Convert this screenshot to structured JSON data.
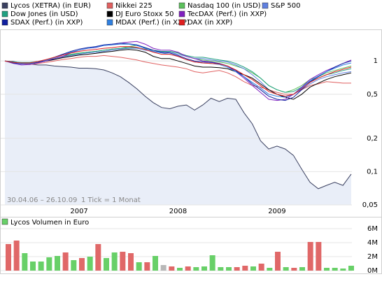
{
  "chart_data": [
    {
      "type": "line",
      "log": true,
      "grid": true,
      "annotations": [
        "30.04.06 – 26.10.09",
        "1 Tick = 1 Monat"
      ],
      "categories": [
        null,
        null,
        null,
        null,
        null,
        null,
        null,
        null,
        null,
        "2007",
        null,
        null,
        null,
        null,
        null,
        null,
        null,
        null,
        null,
        null,
        null,
        "2008",
        null,
        null,
        null,
        null,
        null,
        null,
        null,
        null,
        null,
        null,
        null,
        "2009",
        null,
        null,
        null,
        null,
        null,
        null,
        null,
        null,
        null
      ],
      "ylim": [
        0.05,
        1.93
      ],
      "yticks": [
        {
          "value": 0.05,
          "label": "0,05"
        },
        {
          "value": 0.1,
          "label": "0,1"
        },
        {
          "value": 0.2,
          "label": "0,2"
        },
        {
          "value": 0.5,
          "label": "0,5"
        },
        1
      ],
      "series": [
        {
          "name": "Lycos (XETRA) (in EUR)",
          "color": "#3a4060",
          "fill": "#e9eef8",
          "values": [
            1,
            0.99,
            0.96,
            0.94,
            0.92,
            0.92,
            0.9,
            0.89,
            0.88,
            0.86,
            0.86,
            0.85,
            0.83,
            0.78,
            0.72,
            0.64,
            0.56,
            0.48,
            0.42,
            0.38,
            0.37,
            0.39,
            0.4,
            0.36,
            0.4,
            0.46,
            0.43,
            0.46,
            0.45,
            0.34,
            0.27,
            0.19,
            0.16,
            0.17,
            0.16,
            0.14,
            0.105,
            0.08,
            0.07,
            0.075,
            0.08,
            0.075,
            0.095
          ]
        },
        {
          "name": "Nikkei 225",
          "color": "#e06060",
          "values": [
            1,
            0.97,
            0.95,
            0.93,
            0.95,
            0.97,
            1.0,
            1.03,
            1.05,
            1.08,
            1.1,
            1.1,
            1.12,
            1.1,
            1.08,
            1.05,
            1.02,
            0.98,
            0.95,
            0.92,
            0.9,
            0.88,
            0.85,
            0.8,
            0.78,
            0.8,
            0.82,
            0.78,
            0.72,
            0.65,
            0.6,
            0.58,
            0.55,
            0.52,
            0.5,
            0.5,
            0.55,
            0.6,
            0.62,
            0.65,
            0.64,
            0.63,
            0.63
          ]
        },
        {
          "name": "Nasdaq 100 (in USD)",
          "color": "#5cc05c",
          "values": [
            1,
            0.98,
            0.96,
            0.95,
            0.97,
            1.0,
            1.05,
            1.1,
            1.15,
            1.18,
            1.2,
            1.22,
            1.25,
            1.28,
            1.3,
            1.35,
            1.38,
            1.32,
            1.25,
            1.2,
            1.22,
            1.18,
            1.1,
            1.05,
            1.02,
            1.0,
            0.98,
            0.95,
            0.9,
            0.85,
            0.78,
            0.7,
            0.6,
            0.55,
            0.52,
            0.55,
            0.6,
            0.68,
            0.72,
            0.78,
            0.82,
            0.86,
            0.9
          ]
        },
        {
          "name": "S&P 500",
          "color": "#6080e0",
          "values": [
            1,
            0.98,
            0.96,
            0.96,
            0.98,
            1.0,
            1.03,
            1.08,
            1.12,
            1.15,
            1.18,
            1.2,
            1.22,
            1.25,
            1.28,
            1.3,
            1.3,
            1.25,
            1.22,
            1.2,
            1.2,
            1.15,
            1.1,
            1.05,
            1.05,
            1.02,
            1.0,
            0.98,
            0.92,
            0.85,
            0.75,
            0.65,
            0.55,
            0.5,
            0.48,
            0.5,
            0.55,
            0.62,
            0.68,
            0.72,
            0.75,
            0.78,
            0.8
          ]
        },
        {
          "name": "Dow Jones (in USD)",
          "color": "#20a080",
          "values": [
            1,
            0.98,
            0.97,
            0.97,
            0.99,
            1.02,
            1.05,
            1.1,
            1.14,
            1.17,
            1.2,
            1.22,
            1.25,
            1.28,
            1.3,
            1.32,
            1.32,
            1.28,
            1.25,
            1.22,
            1.22,
            1.18,
            1.12,
            1.08,
            1.08,
            1.05,
            1.02,
            1.0,
            0.95,
            0.88,
            0.8,
            0.7,
            0.6,
            0.55,
            0.52,
            0.53,
            0.58,
            0.65,
            0.7,
            0.75,
            0.78,
            0.82,
            0.85
          ]
        },
        {
          "name": "DJ Euro Stoxx 50",
          "color": "#000000",
          "values": [
            1,
            0.97,
            0.95,
            0.95,
            0.97,
            1.0,
            1.03,
            1.07,
            1.1,
            1.13,
            1.15,
            1.17,
            1.2,
            1.22,
            1.25,
            1.27,
            1.25,
            1.2,
            1.1,
            1.05,
            1.05,
            1.0,
            0.95,
            0.9,
            0.88,
            0.88,
            0.87,
            0.85,
            0.8,
            0.75,
            0.7,
            0.62,
            0.55,
            0.5,
            0.47,
            0.45,
            0.5,
            0.58,
            0.63,
            0.68,
            0.72,
            0.75,
            0.78
          ]
        },
        {
          "name": "TecDAX (Perf.) (in XXP)",
          "color": "#8020c0",
          "values": [
            1,
            0.95,
            0.92,
            0.93,
            0.96,
            1.0,
            1.05,
            1.1,
            1.18,
            1.25,
            1.3,
            1.32,
            1.38,
            1.4,
            1.45,
            1.48,
            1.5,
            1.42,
            1.3,
            1.25,
            1.25,
            1.2,
            1.1,
            1.05,
            1.0,
            0.98,
            0.95,
            0.9,
            0.8,
            0.7,
            0.6,
            0.52,
            0.45,
            0.44,
            0.45,
            0.5,
            0.58,
            0.68,
            0.75,
            0.82,
            0.88,
            0.95,
            1.02
          ]
        },
        {
          "name": "SDAX (Perf.) (in XXP)",
          "color": "#1020a0",
          "values": [
            1,
            0.96,
            0.94,
            0.95,
            0.98,
            1.02,
            1.08,
            1.15,
            1.22,
            1.28,
            1.32,
            1.35,
            1.4,
            1.42,
            1.45,
            1.43,
            1.4,
            1.32,
            1.25,
            1.2,
            1.18,
            1.12,
            1.05,
            1.0,
            0.98,
            0.97,
            0.95,
            0.9,
            0.82,
            0.72,
            0.62,
            0.55,
            0.48,
            0.45,
            0.44,
            0.47,
            0.55,
            0.65,
            0.72,
            0.8,
            0.88,
            0.95,
            1.0
          ]
        },
        {
          "name": "MDAX (Perf.) (in XXP)",
          "color": "#3080e0",
          "values": [
            1,
            0.97,
            0.95,
            0.95,
            0.98,
            1.02,
            1.07,
            1.13,
            1.2,
            1.25,
            1.3,
            1.33,
            1.38,
            1.4,
            1.42,
            1.42,
            1.38,
            1.3,
            1.22,
            1.18,
            1.15,
            1.1,
            1.03,
            0.98,
            0.96,
            0.95,
            0.93,
            0.88,
            0.8,
            0.72,
            0.64,
            0.57,
            0.5,
            0.48,
            0.47,
            0.5,
            0.57,
            0.66,
            0.73,
            0.8,
            0.86,
            0.92,
            0.96
          ]
        },
        {
          "name": "DAX (in XXP)",
          "color": "#e02020",
          "values": [
            1,
            0.97,
            0.96,
            0.96,
            0.99,
            1.03,
            1.08,
            1.13,
            1.18,
            1.22,
            1.25,
            1.27,
            1.3,
            1.32,
            1.35,
            1.35,
            1.33,
            1.27,
            1.2,
            1.15,
            1.15,
            1.1,
            1.03,
            0.98,
            0.96,
            0.95,
            0.94,
            0.9,
            0.83,
            0.75,
            0.68,
            0.6,
            0.53,
            0.5,
            0.48,
            0.5,
            0.56,
            0.64,
            0.7,
            0.75,
            0.8,
            0.84,
            0.88
          ]
        }
      ]
    },
    {
      "type": "bar",
      "title": "Lycos Volumen in Euro",
      "grid": true,
      "ylim": [
        0,
        7500000
      ],
      "yticks": [
        {
          "value": 0,
          "label": "0M"
        },
        {
          "value": 2000000,
          "label": "2M"
        },
        {
          "value": 4000000,
          "label": "4M"
        },
        {
          "value": 6000000,
          "label": "6M"
        }
      ],
      "values": [
        3800000,
        4300000,
        2500000,
        1300000,
        1300000,
        1900000,
        2100000,
        2600000,
        1500000,
        1800000,
        2000000,
        3800000,
        1800000,
        2600000,
        2700000,
        2500000,
        1200000,
        1200000,
        2100000,
        800000,
        600000,
        400000,
        600000,
        500000,
        600000,
        2200000,
        500000,
        500000,
        500000,
        700000,
        600000,
        1000000,
        400000,
        2700000,
        500000,
        400000,
        500000,
        4100000,
        4100000,
        400000,
        400000,
        300000,
        700000
      ],
      "colors": [
        "#e06868",
        "#e06868",
        "#68d068",
        "#68d068",
        "#68d068",
        "#68d068",
        "#68d068",
        "#e06868",
        "#68d068",
        "#e06868",
        "#68d068",
        "#e06868",
        "#68d068",
        "#68d068",
        "#e06868",
        "#e06868",
        "#68d068",
        "#e06868",
        "#68d068",
        "#b8b8b8",
        "#e06868",
        "#68d068",
        "#e06868",
        "#68d068",
        "#68d068",
        "#68d068",
        "#68d068",
        "#68d068",
        "#e06868",
        "#e06868",
        "#68d068",
        "#e06868",
        "#68d068",
        "#e06868",
        "#68d068",
        "#e06868",
        "#68d068",
        "#e06868",
        "#e06868",
        "#68d068",
        "#68d068",
        "#68d068",
        "#68d068"
      ]
    }
  ]
}
